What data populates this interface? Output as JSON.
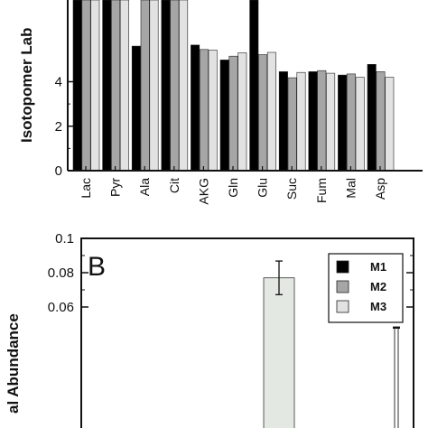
{
  "colors": {
    "M1": "#000000",
    "M2": "#a6a6a6",
    "M3": "#e2e2e2",
    "M3_tall": "#e4e8e2",
    "axis": "#111111"
  },
  "chart_data": [
    {
      "panel": "",
      "type": "bar",
      "ylabel": "Isotopomer Lab",
      "ylim": [
        0,
        8
      ],
      "yticks": [
        "0",
        "2",
        "4"
      ],
      "ytick_values": [
        0,
        2,
        4
      ],
      "categories": [
        "Lac",
        "Pyr",
        "Ala",
        "Cit",
        "AKG",
        "Gln",
        "Glu",
        "Suc",
        "Fum",
        "Mal",
        "Asp"
      ],
      "series": [
        {
          "name": "M1",
          "values": [
            8.0,
            8.0,
            5.6,
            8.0,
            5.65,
            4.98,
            8.0,
            4.45,
            4.45,
            4.3,
            4.78
          ]
        },
        {
          "name": "M2",
          "values": [
            8.0,
            8.0,
            8.0,
            8.0,
            5.45,
            5.15,
            5.22,
            4.18,
            4.5,
            4.35,
            4.45
          ]
        },
        {
          "name": "M3",
          "values": [
            8.0,
            8.0,
            8.0,
            8.0,
            5.42,
            5.3,
            5.32,
            4.42,
            4.38,
            4.2,
            4.2
          ]
        }
      ],
      "grid": false
    },
    {
      "panel": "B",
      "type": "bar",
      "ylabel": "al Abundance",
      "ylim": [
        0.05,
        0.1
      ],
      "yticks": [
        "0.1",
        "0.08",
        "0.06"
      ],
      "ytick_values": [
        0.1,
        0.08,
        0.06
      ],
      "legend": {
        "position": "top-right",
        "entries": [
          "M1",
          "M2",
          "M3"
        ]
      },
      "bars": [
        {
          "series": "M3",
          "value": 0.077,
          "error": 0.0098
        },
        {
          "series": "M3",
          "value": 0.048,
          "error": 0.0003
        }
      ],
      "grid": false
    }
  ]
}
